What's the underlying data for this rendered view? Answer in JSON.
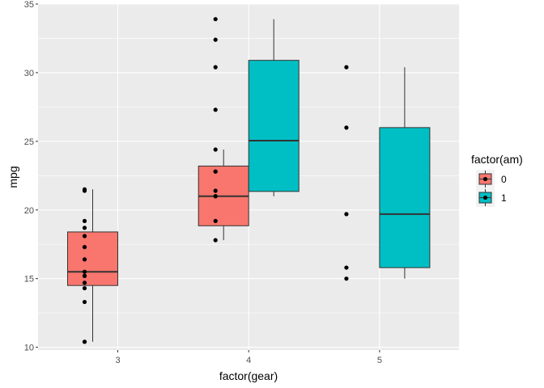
{
  "chart_data": {
    "type": "boxplot",
    "xlabel": "factor(gear)",
    "ylabel": "mpg",
    "categories": [
      "3",
      "4",
      "5"
    ],
    "ylim": [
      9.8,
      35
    ],
    "y_ticks": [
      10,
      15,
      20,
      25,
      30,
      35
    ],
    "grid": true,
    "legend": {
      "title": "factor(am)",
      "placement": "right",
      "entries": [
        {
          "label": "0",
          "color": "#F8766D"
        },
        {
          "label": "1",
          "color": "#00BFC4"
        }
      ]
    },
    "boxes": [
      {
        "category": "3",
        "group": "0",
        "min": 10.4,
        "q1": 14.5,
        "median": 15.5,
        "q3": 18.4,
        "max": 21.5
      },
      {
        "category": "4",
        "group": "0",
        "min": 17.8,
        "q1": 18.85,
        "median": 21.0,
        "q3": 23.2,
        "max": 24.4
      },
      {
        "category": "4",
        "group": "1",
        "min": 21.0,
        "q1": 21.35,
        "median": 25.05,
        "q3": 30.9,
        "max": 33.9
      },
      {
        "category": "5",
        "group": "1",
        "min": 15.0,
        "q1": 15.8,
        "median": 19.7,
        "q3": 26.0,
        "max": 30.4
      }
    ],
    "points": [
      {
        "category": "3",
        "values": [
          21.4,
          18.7,
          18.1,
          14.3,
          16.4,
          17.3,
          15.2,
          10.4,
          10.4,
          14.7,
          21.5,
          15.5,
          15.2,
          13.3,
          19.2
        ]
      },
      {
        "category": "4",
        "values": [
          21.0,
          21.0,
          22.8,
          24.4,
          22.8,
          19.2,
          17.8,
          32.4,
          30.4,
          33.9,
          27.3,
          21.4
        ]
      },
      {
        "category": "5",
        "values": [
          26.0,
          30.4,
          15.8,
          19.7,
          15.0
        ]
      }
    ]
  }
}
